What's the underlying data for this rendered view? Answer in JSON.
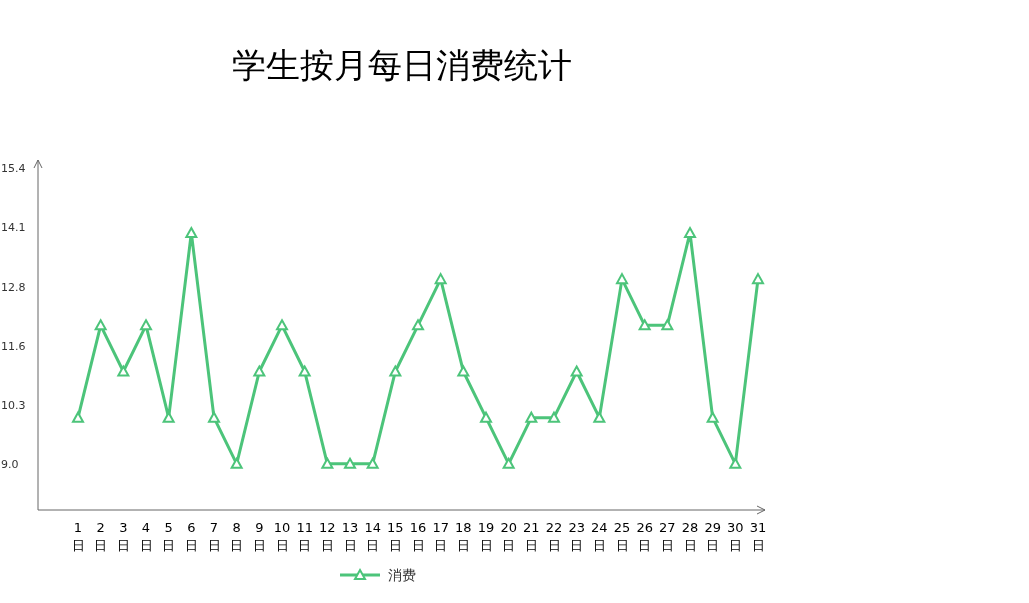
{
  "chart_data": {
    "type": "line",
    "title": "学生按月每日消费统计",
    "categories": [
      "1日",
      "2日",
      "3日",
      "4日",
      "5日",
      "6日",
      "7日",
      "8日",
      "9日",
      "10日",
      "11日",
      "12日",
      "13日",
      "14日",
      "15日",
      "16日",
      "17日",
      "18日",
      "19日",
      "20日",
      "21日",
      "22日",
      "23日",
      "24日",
      "25日",
      "26日",
      "27日",
      "28日",
      "29日",
      "30日",
      "31日"
    ],
    "series": [
      {
        "name": "消费",
        "color": "#4cc47a",
        "values": [
          10,
          12,
          11,
          12,
          10,
          14,
          10,
          9,
          11,
          12,
          11,
          9,
          9,
          9,
          11,
          12,
          13,
          11,
          10,
          9,
          10,
          10,
          11,
          10,
          13,
          12,
          12,
          14,
          10,
          9,
          13
        ]
      }
    ],
    "ylim": [
      8,
      15.58
    ],
    "yticks": [
      {
        "value": 9.0,
        "label": "9.0"
      },
      {
        "value": 10.28,
        "label": "10.3"
      },
      {
        "value": 11.56,
        "label": "11.6"
      },
      {
        "value": 12.84,
        "label": "12.8"
      },
      {
        "value": 14.12,
        "label": "14.1"
      },
      {
        "value": 15.4,
        "label": "15.4"
      }
    ],
    "grid": false,
    "legend": "bottom",
    "marker": "triangle",
    "line_style": "solid"
  }
}
